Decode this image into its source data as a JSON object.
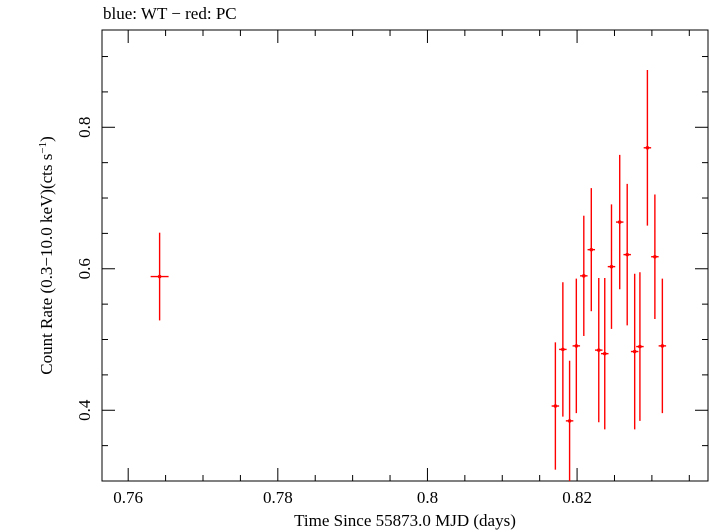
{
  "chart_data": {
    "type": "scatter",
    "title": "blue: WT − red: PC",
    "xlabel": "Time Since 55873.0 MJD (days)",
    "ylabel_main": "Count Rate (0.3−10.0 keV)(cts s",
    "ylabel_sup": "−1",
    "ylabel_close": ")",
    "xlim": [
      0.7565,
      0.8375
    ],
    "ylim": [
      0.3,
      0.9375
    ],
    "x_ticks": [
      {
        "value": 0.76,
        "label": "0.76"
      },
      {
        "value": 0.78,
        "label": "0.78"
      },
      {
        "value": 0.8,
        "label": "0.8"
      },
      {
        "value": 0.82,
        "label": "0.82"
      }
    ],
    "y_ticks": [
      {
        "value": 0.4,
        "label": "0.4"
      },
      {
        "value": 0.6,
        "label": "0.6"
      },
      {
        "value": 0.8,
        "label": "0.8"
      }
    ],
    "series": [
      {
        "name": "PC",
        "color": "#ff0000",
        "points": [
          {
            "x": 0.7642,
            "xerr": 0.0012,
            "y": 0.589,
            "yerr": 0.062
          },
          {
            "x": 0.8171,
            "xerr": 0.0005,
            "y": 0.406,
            "yerr": 0.09
          },
          {
            "x": 0.8181,
            "xerr": 0.0005,
            "y": 0.486,
            "yerr": 0.095
          },
          {
            "x": 0.819,
            "xerr": 0.0005,
            "y": 0.385,
            "yerr": 0.085
          },
          {
            "x": 0.8199,
            "xerr": 0.0005,
            "y": 0.491,
            "yerr": 0.095
          },
          {
            "x": 0.8209,
            "xerr": 0.0005,
            "y": 0.59,
            "yerr": 0.085
          },
          {
            "x": 0.8219,
            "xerr": 0.0005,
            "y": 0.627,
            "yerr": 0.087
          },
          {
            "x": 0.8229,
            "xerr": 0.0005,
            "y": 0.485,
            "yerr": 0.102
          },
          {
            "x": 0.8237,
            "xerr": 0.0005,
            "y": 0.48,
            "yerr": 0.107
          },
          {
            "x": 0.8246,
            "xerr": 0.0005,
            "y": 0.603,
            "yerr": 0.088
          },
          {
            "x": 0.8257,
            "xerr": 0.0005,
            "y": 0.666,
            "yerr": 0.095
          },
          {
            "x": 0.8267,
            "xerr": 0.0005,
            "y": 0.62,
            "yerr": 0.1
          },
          {
            "x": 0.8277,
            "xerr": 0.0005,
            "y": 0.483,
            "yerr": 0.11
          },
          {
            "x": 0.8284,
            "xerr": 0.0005,
            "y": 0.49,
            "yerr": 0.105
          },
          {
            "x": 0.8294,
            "xerr": 0.0005,
            "y": 0.771,
            "yerr": 0.11
          },
          {
            "x": 0.8304,
            "xerr": 0.0005,
            "y": 0.617,
            "yerr": 0.088
          },
          {
            "x": 0.8314,
            "xerr": 0.0005,
            "y": 0.491,
            "yerr": 0.095
          }
        ]
      }
    ]
  }
}
